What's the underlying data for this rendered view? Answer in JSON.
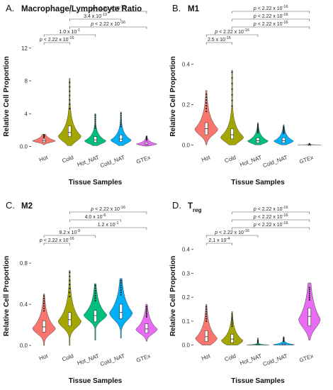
{
  "figure": {
    "panels": [
      {
        "letter": "A.",
        "title": "Macrophage/Lymphocyte Ratio"
      },
      {
        "letter": "B.",
        "title": "M1"
      },
      {
        "letter": "C.",
        "title": "M2"
      },
      {
        "letter": "D.",
        "title": "T",
        "title_sub": "reg"
      }
    ]
  },
  "chart_data": [
    {
      "type": "violin",
      "title": "Macrophage/Lymphocyte Ratio",
      "xlabel": "Tissue Samples",
      "ylabel": "Relative Cell Proportion",
      "ylim": [
        -0.3,
        12.5
      ],
      "yticks": [
        0,
        4,
        8,
        12
      ],
      "categories": [
        "Hot",
        "Cold",
        "Hot_NAT",
        "Cold_NAT",
        "GTEx"
      ],
      "colors": [
        "#f8766d",
        "#a3a500",
        "#00bf7d",
        "#00b0f6",
        "#e76bf3"
      ],
      "series": [
        {
          "median": 0.7,
          "q1": 0.5,
          "q3": 0.9,
          "min": 0.2,
          "max": 1.4,
          "top": 1.5,
          "widthpeak": 0.45,
          "peak": 0.7
        },
        {
          "median": 1.7,
          "q1": 1.2,
          "q3": 2.5,
          "min": 0.1,
          "max": 7.8,
          "top": 8.3,
          "widthpeak": 0.45,
          "peak": 1.3
        },
        {
          "median": 0.8,
          "q1": 0.5,
          "q3": 1.2,
          "min": 0.1,
          "max": 3.8,
          "top": 4.0,
          "widthpeak": 0.42,
          "peak": 0.7
        },
        {
          "median": 0.9,
          "q1": 0.6,
          "q3": 1.4,
          "min": 0.1,
          "max": 4.0,
          "top": 4.2,
          "widthpeak": 0.4,
          "peak": 0.8
        },
        {
          "median": 0.3,
          "q1": 0.2,
          "q3": 0.5,
          "min": 0.05,
          "max": 1.2,
          "top": 1.3,
          "widthpeak": 0.4,
          "peak": 0.3
        }
      ],
      "comparisons": [
        {
          "from": "Hot",
          "to": "Cold",
          "label_pre": "p < 2.22 x 10",
          "label_sup": "-16"
        },
        {
          "from": "Hot",
          "to": "Hot_NAT",
          "label_pre": "1.0 x 10",
          "label_sup": "-1"
        },
        {
          "from": "Cold",
          "to": "GTEx",
          "label_pre": "p < 2.22 x 10",
          "label_sup": "-16"
        },
        {
          "from": "Cold",
          "to": "Cold_NAT",
          "label_pre": "3.4 x 10",
          "label_sup": "-13"
        },
        {
          "from": "Cold",
          "to": "GTEx",
          "label_pre": "p < 2.22 x 10",
          "label_sup": "-16"
        }
      ]
    },
    {
      "type": "violin",
      "title": "M1",
      "xlabel": "Tissue Samples",
      "ylabel": "Relative Cell Proportion",
      "ylim": [
        -0.02,
        0.5
      ],
      "yticks": [
        0.0,
        0.2,
        0.4
      ],
      "categories": [
        "Hot",
        "Cold",
        "Hot_NAT",
        "Cold_NAT",
        "GTEx"
      ],
      "colors": [
        "#f8766d",
        "#a3a500",
        "#00bf7d",
        "#00b0f6",
        "#e76bf3"
      ],
      "series": [
        {
          "median": 0.08,
          "q1": 0.05,
          "q3": 0.11,
          "min": 0.0,
          "max": 0.25,
          "top": 0.27,
          "widthpeak": 0.45,
          "peak": 0.08
        },
        {
          "median": 0.05,
          "q1": 0.03,
          "q3": 0.08,
          "min": 0.0,
          "max": 0.36,
          "top": 0.37,
          "widthpeak": 0.45,
          "peak": 0.04
        },
        {
          "median": 0.02,
          "q1": 0.01,
          "q3": 0.035,
          "min": 0.0,
          "max": 0.1,
          "top": 0.11,
          "widthpeak": 0.4,
          "peak": 0.02
        },
        {
          "median": 0.02,
          "q1": 0.01,
          "q3": 0.035,
          "min": 0.0,
          "max": 0.09,
          "top": 0.1,
          "widthpeak": 0.38,
          "peak": 0.02
        },
        {
          "median": 0.0,
          "q1": 0.0,
          "q3": 0.001,
          "min": 0.0,
          "max": 0.005,
          "top": 0.006,
          "widthpeak": 0.45,
          "peak": 0.0
        }
      ],
      "comparisons": [
        {
          "from": "Hot",
          "to": "Cold",
          "label_pre": "2.5 x 10",
          "label_sup": "-15"
        },
        {
          "from": "Hot",
          "to": "Hot_NAT",
          "label_pre": "p < 2.22 x 10",
          "label_sup": "-16"
        },
        {
          "from": "Cold",
          "to": "GTEx",
          "label_pre": "p < 2.22 x 10",
          "label_sup": "-16"
        },
        {
          "from": "Cold",
          "to": "GTEx",
          "label_pre": "p < 2.22 x 10",
          "label_sup": "-16"
        },
        {
          "from": "Cold",
          "to": "GTEx",
          "label_pre": "p < 2.22 x 10",
          "label_sup": "-16"
        }
      ]
    },
    {
      "type": "violin",
      "title": "M2",
      "xlabel": "Tissue Samples",
      "ylabel": "Relative Cell Proportion",
      "ylim": [
        -0.02,
        0.98
      ],
      "yticks": [
        0.0,
        0.4,
        0.8
      ],
      "categories": [
        "Hot",
        "Cold",
        "Hot_NAT",
        "Cold_NAT",
        "GTEx"
      ],
      "colors": [
        "#f8766d",
        "#a3a500",
        "#00bf7d",
        "#00b0f6",
        "#e76bf3"
      ],
      "series": [
        {
          "median": 0.18,
          "q1": 0.13,
          "q3": 0.24,
          "min": 0.0,
          "max": 0.48,
          "top": 0.5,
          "widthpeak": 0.45,
          "peak": 0.17
        },
        {
          "median": 0.25,
          "q1": 0.19,
          "q3": 0.32,
          "min": 0.0,
          "max": 0.71,
          "top": 0.73,
          "widthpeak": 0.45,
          "peak": 0.24
        },
        {
          "median": 0.29,
          "q1": 0.23,
          "q3": 0.34,
          "min": 0.05,
          "max": 0.58,
          "top": 0.6,
          "widthpeak": 0.45,
          "peak": 0.3
        },
        {
          "median": 0.32,
          "q1": 0.26,
          "q3": 0.4,
          "min": 0.07,
          "max": 0.63,
          "top": 0.65,
          "widthpeak": 0.45,
          "peak": 0.32
        },
        {
          "median": 0.16,
          "q1": 0.12,
          "q3": 0.21,
          "min": 0.04,
          "max": 0.38,
          "top": 0.4,
          "widthpeak": 0.42,
          "peak": 0.16
        }
      ],
      "comparisons": [
        {
          "from": "Hot",
          "to": "Cold",
          "label_pre": "p < 2.22 x 10",
          "label_sup": "-16"
        },
        {
          "from": "Hot",
          "to": "Hot_NAT",
          "label_pre": "9.2 x 10",
          "label_sup": "-9"
        },
        {
          "from": "Cold",
          "to": "GTEx",
          "label_pre": "1.2 x 10",
          "label_sup": "-1"
        },
        {
          "from": "Cold",
          "to": "Cold_NAT",
          "label_pre": "4.0 x 10",
          "label_sup": "-6"
        },
        {
          "from": "Cold",
          "to": "GTEx",
          "label_pre": "p < 2.22 x 10",
          "label_sup": "-16"
        }
      ]
    },
    {
      "type": "violin",
      "title": "Treg",
      "xlabel": "Tissue Samples",
      "ylabel": "Relative Cell Proportion",
      "ylim": [
        -0.01,
        0.42
      ],
      "yticks": [
        0.0,
        0.1,
        0.2,
        0.3,
        0.4
      ],
      "categories": [
        "Hot",
        "Cold",
        "Hot_NAT",
        "Cold_NAT",
        "GTEx"
      ],
      "colors": [
        "#f8766d",
        "#a3a500",
        "#00bf7d",
        "#00b0f6",
        "#e76bf3"
      ],
      "series": [
        {
          "median": 0.035,
          "q1": 0.015,
          "q3": 0.06,
          "min": 0.0,
          "max": 0.16,
          "top": 0.17,
          "widthpeak": 0.42,
          "peak": 0.03
        },
        {
          "median": 0.025,
          "q1": 0.01,
          "q3": 0.045,
          "min": 0.0,
          "max": 0.13,
          "top": 0.14,
          "widthpeak": 0.42,
          "peak": 0.02
        },
        {
          "median": 0.0,
          "q1": 0.0,
          "q3": 0.003,
          "min": 0.0,
          "max": 0.02,
          "top": 0.03,
          "widthpeak": 0.42,
          "peak": 0.0
        },
        {
          "median": 0.002,
          "q1": 0.0,
          "q3": 0.006,
          "min": 0.0,
          "max": 0.03,
          "top": 0.035,
          "widthpeak": 0.42,
          "peak": 0.002
        },
        {
          "median": 0.12,
          "q1": 0.08,
          "q3": 0.155,
          "min": 0.02,
          "max": 0.24,
          "top": 0.26,
          "widthpeak": 0.42,
          "peak": 0.11
        }
      ],
      "comparisons": [
        {
          "from": "Hot",
          "to": "Cold",
          "label_pre": "2.1 x 10",
          "label_sup": "-4"
        },
        {
          "from": "Hot",
          "to": "Hot_NAT",
          "label_pre": "p < 2.22 x 10",
          "label_sup": "-16"
        },
        {
          "from": "Cold",
          "to": "GTEx",
          "label_pre": "p < 2.22 x 10",
          "label_sup": "-16"
        },
        {
          "from": "Cold",
          "to": "GTEx",
          "label_pre": "p < 2.22 x 10",
          "label_sup": "-16"
        },
        {
          "from": "Cold",
          "to": "GTEx",
          "label_pre": "p < 2.22 x 10",
          "label_sup": "-16"
        }
      ]
    }
  ]
}
